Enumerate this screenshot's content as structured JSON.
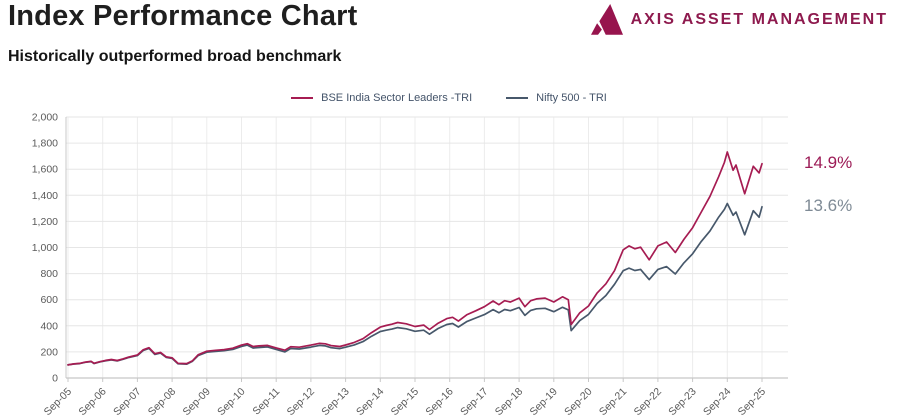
{
  "header": {
    "title": "Index Performance Chart",
    "subtitle": "Historically outperformed broad benchmark",
    "brand": {
      "name": "AXIS ASSET MANAGEMENT",
      "icon": "axis-triangle-logo",
      "color": "#97144d",
      "text_color": "#8e1a4e"
    }
  },
  "chart_data": {
    "type": "line",
    "title": "",
    "xlabel": "",
    "ylabel": "",
    "ylim": [
      0,
      2000
    ],
    "y_tick_labels": [
      "0",
      "200",
      "400",
      "600",
      "800",
      "1,000",
      "1,200",
      "1,400",
      "1,600",
      "1,800",
      "2,000"
    ],
    "x_tick_labels": [
      "Sep-05",
      "Sep-06",
      "Sep-07",
      "Sep-08",
      "Sep-09",
      "Sep-10",
      "Sep-11",
      "Sep-12",
      "Sep-13",
      "Sep-14",
      "Sep-15",
      "Sep-16",
      "Sep-17",
      "Sep-18",
      "Sep-19",
      "Sep-20",
      "Sep-21",
      "Sep-22",
      "Sep-23",
      "Sep-24",
      "Sep-25"
    ],
    "x_unit": "months since Sep-2005 (0 = Sep-05, 240 = Sep-25)",
    "grid": {
      "horizontal": true,
      "vertical": true
    },
    "legend_position": "top-center",
    "axis_label_color": "#5a5a5a",
    "gridline_color": "#e6e6e6",
    "axis_line_color": "#c8c8c8",
    "series": [
      {
        "name": "BSE India Sector Leaders -TRI",
        "color": "#a61c52",
        "end_label": "14.9%",
        "end_label_color": "#9c1b56",
        "points": [
          [
            0,
            100
          ],
          [
            2,
            108
          ],
          [
            4,
            112
          ],
          [
            6,
            122
          ],
          [
            8,
            128
          ],
          [
            9,
            113
          ],
          [
            11,
            125
          ],
          [
            13,
            135
          ],
          [
            15,
            142
          ],
          [
            17,
            134
          ],
          [
            19,
            146
          ],
          [
            21,
            160
          ],
          [
            24,
            176
          ],
          [
            26,
            216
          ],
          [
            28,
            232
          ],
          [
            30,
            186
          ],
          [
            32,
            196
          ],
          [
            34,
            162
          ],
          [
            36,
            155
          ],
          [
            38,
            113
          ],
          [
            41,
            110
          ],
          [
            43,
            131
          ],
          [
            45,
            178
          ],
          [
            48,
            205
          ],
          [
            51,
            212
          ],
          [
            54,
            218
          ],
          [
            57,
            228
          ],
          [
            60,
            252
          ],
          [
            62,
            263
          ],
          [
            64,
            241
          ],
          [
            66,
            246
          ],
          [
            69,
            250
          ],
          [
            72,
            231
          ],
          [
            75,
            213
          ],
          [
            77,
            240
          ],
          [
            80,
            236
          ],
          [
            84,
            252
          ],
          [
            87,
            266
          ],
          [
            89,
            262
          ],
          [
            91,
            248
          ],
          [
            94,
            241
          ],
          [
            96,
            253
          ],
          [
            99,
            273
          ],
          [
            102,
            301
          ],
          [
            105,
            348
          ],
          [
            108,
            390
          ],
          [
            110,
            402
          ],
          [
            112,
            412
          ],
          [
            114,
            425
          ],
          [
            117,
            415
          ],
          [
            120,
            395
          ],
          [
            123,
            405
          ],
          [
            125,
            372
          ],
          [
            128,
            420
          ],
          [
            131,
            455
          ],
          [
            133,
            465
          ],
          [
            135,
            436
          ],
          [
            138,
            486
          ],
          [
            141,
            515
          ],
          [
            144,
            546
          ],
          [
            147,
            590
          ],
          [
            149,
            562
          ],
          [
            151,
            592
          ],
          [
            153,
            582
          ],
          [
            156,
            612
          ],
          [
            158,
            546
          ],
          [
            160,
            592
          ],
          [
            162,
            606
          ],
          [
            165,
            612
          ],
          [
            168,
            582
          ],
          [
            171,
            622
          ],
          [
            173,
            600
          ],
          [
            174,
            410
          ],
          [
            177,
            500
          ],
          [
            180,
            552
          ],
          [
            183,
            652
          ],
          [
            186,
            722
          ],
          [
            189,
            822
          ],
          [
            192,
            982
          ],
          [
            194,
            1012
          ],
          [
            196,
            990
          ],
          [
            198,
            1002
          ],
          [
            201,
            906
          ],
          [
            204,
            1012
          ],
          [
            207,
            1042
          ],
          [
            210,
            962
          ],
          [
            213,
            1062
          ],
          [
            216,
            1152
          ],
          [
            219,
            1272
          ],
          [
            222,
            1392
          ],
          [
            225,
            1542
          ],
          [
            227,
            1652
          ],
          [
            228,
            1732
          ],
          [
            230,
            1592
          ],
          [
            231,
            1632
          ],
          [
            234,
            1412
          ],
          [
            237,
            1622
          ],
          [
            239,
            1572
          ],
          [
            240,
            1642
          ]
        ]
      },
      {
        "name": "Nifty 500 - TRI",
        "color": "#47586b",
        "end_label": "13.6%",
        "end_label_color": "#7e8a95",
        "points": [
          [
            0,
            100
          ],
          [
            2,
            107
          ],
          [
            4,
            110
          ],
          [
            6,
            120
          ],
          [
            8,
            126
          ],
          [
            9,
            111
          ],
          [
            11,
            123
          ],
          [
            13,
            132
          ],
          [
            15,
            139
          ],
          [
            17,
            131
          ],
          [
            19,
            143
          ],
          [
            21,
            157
          ],
          [
            24,
            172
          ],
          [
            26,
            211
          ],
          [
            28,
            227
          ],
          [
            30,
            181
          ],
          [
            32,
            191
          ],
          [
            34,
            158
          ],
          [
            36,
            150
          ],
          [
            38,
            109
          ],
          [
            41,
            106
          ],
          [
            43,
            127
          ],
          [
            45,
            172
          ],
          [
            48,
            198
          ],
          [
            51,
            204
          ],
          [
            54,
            210
          ],
          [
            57,
            219
          ],
          [
            60,
            242
          ],
          [
            62,
            252
          ],
          [
            64,
            230
          ],
          [
            66,
            234
          ],
          [
            69,
            238
          ],
          [
            72,
            219
          ],
          [
            75,
            200
          ],
          [
            77,
            226
          ],
          [
            80,
            222
          ],
          [
            84,
            237
          ],
          [
            87,
            250
          ],
          [
            89,
            246
          ],
          [
            91,
            232
          ],
          [
            94,
            225
          ],
          [
            96,
            236
          ],
          [
            99,
            254
          ],
          [
            102,
            279
          ],
          [
            105,
            320
          ],
          [
            108,
            356
          ],
          [
            110,
            366
          ],
          [
            112,
            375
          ],
          [
            114,
            386
          ],
          [
            117,
            377
          ],
          [
            120,
            358
          ],
          [
            123,
            366
          ],
          [
            125,
            336
          ],
          [
            128,
            379
          ],
          [
            131,
            410
          ],
          [
            133,
            418
          ],
          [
            135,
            391
          ],
          [
            138,
            434
          ],
          [
            141,
            460
          ],
          [
            144,
            486
          ],
          [
            147,
            524
          ],
          [
            149,
            500
          ],
          [
            151,
            525
          ],
          [
            153,
            516
          ],
          [
            156,
            540
          ],
          [
            158,
            480
          ],
          [
            160,
            518
          ],
          [
            162,
            530
          ],
          [
            165,
            534
          ],
          [
            168,
            508
          ],
          [
            171,
            542
          ],
          [
            173,
            522
          ],
          [
            174,
            363
          ],
          [
            177,
            440
          ],
          [
            180,
            487
          ],
          [
            183,
            572
          ],
          [
            186,
            632
          ],
          [
            189,
            718
          ],
          [
            192,
            822
          ],
          [
            194,
            842
          ],
          [
            196,
            824
          ],
          [
            198,
            832
          ],
          [
            201,
            754
          ],
          [
            204,
            832
          ],
          [
            207,
            854
          ],
          [
            210,
            797
          ],
          [
            213,
            882
          ],
          [
            216,
            952
          ],
          [
            219,
            1047
          ],
          [
            222,
            1127
          ],
          [
            225,
            1232
          ],
          [
            227,
            1292
          ],
          [
            228,
            1337
          ],
          [
            230,
            1247
          ],
          [
            231,
            1272
          ],
          [
            234,
            1097
          ],
          [
            237,
            1282
          ],
          [
            239,
            1232
          ],
          [
            240,
            1312
          ]
        ]
      }
    ]
  }
}
